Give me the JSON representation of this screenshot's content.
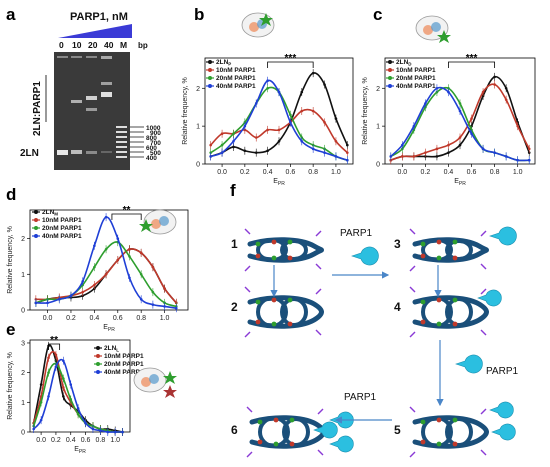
{
  "panels": {
    "a": "a",
    "b": "b",
    "c": "c",
    "d": "d",
    "e": "e",
    "f": "f"
  },
  "gel": {
    "title": "PARP1, nM",
    "lanes": [
      "0",
      "10",
      "20",
      "40",
      "M"
    ],
    "bp_label": "bp",
    "complex_label": "2LN:PARP1",
    "free_label": "2LN",
    "ladder": [
      "1000",
      "900",
      "800",
      "700",
      "600",
      "500",
      "400"
    ]
  },
  "colors": {
    "black": "#111111",
    "red": "#c0392b",
    "green": "#2e9e2e",
    "blue": "#1f3fd6",
    "dna": "#1a4f7a",
    "parp": "#2bbfe0"
  },
  "chart_data": [
    {
      "id": "b",
      "type": "line",
      "title": "",
      "xlabel": "E_PR",
      "ylabel": "Relative frequency, %",
      "xlim": [
        -0.15,
        1.15
      ],
      "ylim": [
        0,
        2.8
      ],
      "xticks": [
        "0.0",
        "0.2",
        "0.4",
        "0.6",
        "0.8",
        "1.0"
      ],
      "yticks": [
        "0",
        "1",
        "2"
      ],
      "significance": "***",
      "series": [
        {
          "name": "2LN_P",
          "color": "#111111",
          "x": [
            -0.1,
            0,
            0.1,
            0.2,
            0.3,
            0.4,
            0.5,
            0.6,
            0.7,
            0.8,
            0.9,
            1.0,
            1.1
          ],
          "values": [
            0.2,
            0.3,
            0.45,
            0.35,
            0.3,
            0.35,
            0.6,
            1.1,
            1.9,
            2.4,
            2.1,
            1.2,
            0.5
          ]
        },
        {
          "name": "10nM PARP1",
          "color": "#c0392b",
          "x": [
            -0.1,
            0,
            0.1,
            0.2,
            0.3,
            0.4,
            0.5,
            0.6,
            0.7,
            0.8,
            0.9,
            1.0,
            1.1
          ],
          "values": [
            0.5,
            0.8,
            0.8,
            0.9,
            0.7,
            0.9,
            0.9,
            1.1,
            1.4,
            1.4,
            1.1,
            0.6,
            0.3
          ]
        },
        {
          "name": "20nM PARP1",
          "color": "#2e9e2e",
          "x": [
            -0.1,
            0,
            0.1,
            0.2,
            0.3,
            0.4,
            0.5,
            0.6,
            0.7,
            0.8,
            0.9,
            1.0,
            1.1
          ],
          "values": [
            0.3,
            0.5,
            0.8,
            1.1,
            1.6,
            2.0,
            1.9,
            1.3,
            0.7,
            0.5,
            0.4,
            0.2,
            0.1
          ]
        },
        {
          "name": "40nM PARP1",
          "color": "#1f3fd6",
          "x": [
            -0.1,
            0,
            0.1,
            0.2,
            0.3,
            0.4,
            0.5,
            0.6,
            0.7,
            0.8,
            0.9,
            1.0,
            1.1
          ],
          "values": [
            0.2,
            0.3,
            0.6,
            1.0,
            1.6,
            2.2,
            1.9,
            1.1,
            0.6,
            0.4,
            0.3,
            0.2,
            0.1
          ]
        }
      ]
    },
    {
      "id": "c",
      "type": "line",
      "title": "",
      "xlabel": "E_PR",
      "ylabel": "Relative frequency, %",
      "xlim": [
        -0.15,
        1.15
      ],
      "ylim": [
        0,
        2.8
      ],
      "xticks": [
        "0.0",
        "0.2",
        "0.4",
        "0.6",
        "0.8",
        "1.0"
      ],
      "yticks": [
        "0",
        "1",
        "2"
      ],
      "significance": "***",
      "series": [
        {
          "name": "2LN_D",
          "color": "#111111",
          "x": [
            -0.1,
            0,
            0.1,
            0.2,
            0.3,
            0.4,
            0.5,
            0.6,
            0.7,
            0.8,
            0.9,
            1.0,
            1.1
          ],
          "values": [
            0.1,
            0.2,
            0.2,
            0.2,
            0.2,
            0.3,
            0.5,
            1.0,
            1.8,
            2.3,
            2.0,
            1.1,
            0.3
          ]
        },
        {
          "name": "10nM PARP1",
          "color": "#c0392b",
          "x": [
            -0.1,
            0,
            0.1,
            0.2,
            0.3,
            0.4,
            0.5,
            0.6,
            0.7,
            0.8,
            0.9,
            1.0,
            1.1
          ],
          "values": [
            0.1,
            0.2,
            0.2,
            0.3,
            0.4,
            0.5,
            0.7,
            1.2,
            1.9,
            2.1,
            1.7,
            1.0,
            0.4
          ]
        },
        {
          "name": "20nM PARP1",
          "color": "#2e9e2e",
          "x": [
            -0.1,
            0,
            0.1,
            0.2,
            0.3,
            0.4,
            0.5,
            0.6,
            0.7,
            0.8,
            0.9,
            1.0,
            1.1
          ],
          "values": [
            0.2,
            0.4,
            0.9,
            1.5,
            1.9,
            2.0,
            1.6,
            0.9,
            0.4,
            0.3,
            0.2,
            0.1,
            0.1
          ]
        },
        {
          "name": "40nM PARP1",
          "color": "#1f3fd6",
          "x": [
            -0.1,
            0,
            0.1,
            0.2,
            0.3,
            0.4,
            0.5,
            0.6,
            0.7,
            0.8,
            0.9,
            1.0,
            1.1
          ],
          "values": [
            0.2,
            0.5,
            1.0,
            1.6,
            2.0,
            1.9,
            1.4,
            0.8,
            0.4,
            0.3,
            0.2,
            0.1,
            0.1
          ]
        }
      ]
    },
    {
      "id": "d",
      "type": "line",
      "title": "",
      "xlabel": "E_PR",
      "ylabel": "Relative frequency, %",
      "xlim": [
        -0.15,
        1.2
      ],
      "ylim": [
        0,
        2.8
      ],
      "xticks": [
        "0.0",
        "0.2",
        "0.4",
        "0.6",
        "0.8",
        "1.0"
      ],
      "yticks": [
        "0",
        "1",
        "2"
      ],
      "significance": "**",
      "series": [
        {
          "name": "2LN_M",
          "color": "#111111",
          "x": [
            -0.1,
            0,
            0.1,
            0.2,
            0.3,
            0.4,
            0.5,
            0.6,
            0.7,
            0.8,
            0.9,
            1.0,
            1.1
          ],
          "values": [
            0.2,
            0.3,
            0.35,
            0.35,
            0.4,
            0.6,
            1.0,
            1.4,
            1.7,
            1.6,
            1.2,
            0.6,
            0.2
          ]
        },
        {
          "name": "10nM PARP1",
          "color": "#c0392b",
          "x": [
            -0.1,
            0,
            0.1,
            0.2,
            0.3,
            0.4,
            0.5,
            0.6,
            0.7,
            0.8,
            0.9,
            1.0,
            1.1
          ],
          "values": [
            0.3,
            0.3,
            0.35,
            0.4,
            0.5,
            0.7,
            1.0,
            1.4,
            1.7,
            1.6,
            1.2,
            0.6,
            0.2
          ]
        },
        {
          "name": "20nM PARP1",
          "color": "#2e9e2e",
          "x": [
            -0.1,
            0,
            0.1,
            0.2,
            0.3,
            0.4,
            0.5,
            0.6,
            0.7,
            0.8,
            0.9,
            1.0,
            1.1
          ],
          "values": [
            0.2,
            0.3,
            0.3,
            0.4,
            0.7,
            1.2,
            1.7,
            1.9,
            1.5,
            1.0,
            0.5,
            0.2,
            0.1
          ]
        },
        {
          "name": "40nM PARP1",
          "color": "#1f3fd6",
          "x": [
            -0.1,
            0,
            0.1,
            0.2,
            0.3,
            0.4,
            0.5,
            0.6,
            0.7,
            0.8,
            0.9,
            1.0,
            1.1
          ],
          "values": [
            0.2,
            0.2,
            0.3,
            0.4,
            0.8,
            1.8,
            2.6,
            2.0,
            0.9,
            0.3,
            0.15,
            0.1,
            0.05
          ]
        }
      ]
    },
    {
      "id": "e",
      "type": "line",
      "title": "",
      "xlabel": "E_PR",
      "ylabel": "Relative frequency, %",
      "xlim": [
        -0.15,
        1.2
      ],
      "ylim": [
        0,
        3.1
      ],
      "xticks": [
        "0.0",
        "0.2",
        "0.4",
        "0.6",
        "0.8",
        "1.0"
      ],
      "yticks": [
        "0",
        "1",
        "2",
        "3"
      ],
      "significance": "**",
      "series": [
        {
          "name": "2LN_L",
          "color": "#111111",
          "x": [
            -0.1,
            0,
            0.1,
            0.2,
            0.3,
            0.4,
            0.5,
            0.6,
            0.7,
            0.8,
            0.9,
            1.0,
            1.1
          ],
          "values": [
            0.3,
            1.6,
            2.9,
            2.4,
            1.2,
            0.9,
            0.7,
            0.4,
            0.2,
            0.1,
            0.1,
            0.05,
            0
          ]
        },
        {
          "name": "10nM PARP1",
          "color": "#c0392b",
          "x": [
            -0.1,
            0,
            0.1,
            0.2,
            0.3,
            0.4,
            0.5,
            0.6,
            0.7,
            0.8,
            0.9,
            1.0,
            1.1
          ],
          "values": [
            0.3,
            1.2,
            2.5,
            2.6,
            1.5,
            1.0,
            0.6,
            0.3,
            0.2,
            0.1,
            0.05,
            0,
            0
          ]
        },
        {
          "name": "20nM PARP1",
          "color": "#2e9e2e",
          "x": [
            -0.1,
            0,
            0.1,
            0.2,
            0.3,
            0.4,
            0.5,
            0.6,
            0.7,
            0.8,
            0.9,
            1.0,
            1.1
          ],
          "values": [
            0.2,
            1.0,
            2.0,
            2.3,
            1.8,
            1.1,
            0.6,
            0.3,
            0.2,
            0.1,
            0.05,
            0,
            0
          ]
        },
        {
          "name": "40nM PARP1",
          "color": "#1f3fd6",
          "x": [
            -0.1,
            0,
            0.1,
            0.2,
            0.3,
            0.4,
            0.5,
            0.6,
            0.7,
            0.8,
            0.9,
            1.0,
            1.1
          ],
          "values": [
            0.1,
            0.4,
            1.2,
            2.2,
            2.4,
            1.6,
            0.8,
            0.3,
            0.1,
            0.05,
            0,
            0,
            0
          ]
        }
      ]
    }
  ],
  "scheme": {
    "stages": [
      "1",
      "2",
      "3",
      "4",
      "5",
      "6"
    ],
    "parp_label": "PARP1"
  }
}
